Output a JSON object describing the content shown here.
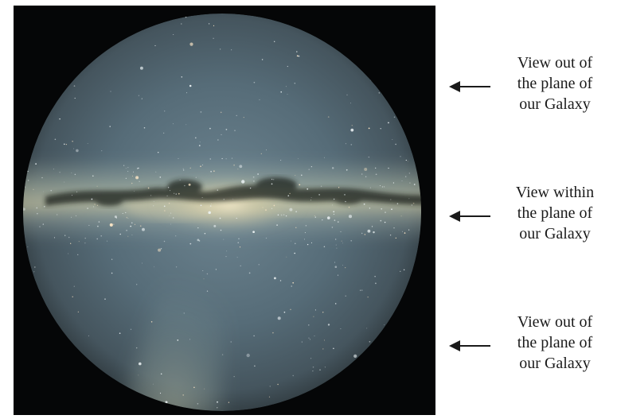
{
  "figure": {
    "background_color": "#050607",
    "sky_colors": {
      "sky_edge": "#3c4a52",
      "sky_mid": "#5d7480",
      "band_core": "#f3e7c4",
      "band_glow": "#c9c9a6",
      "dust_lane": "#1e211d",
      "zodiacal_glow": "#9fb4ad"
    },
    "annotations": [
      {
        "lines": [
          "View out of",
          "the plane of",
          "our Galaxy"
        ],
        "arrow_icon": "left-arrow-icon"
      },
      {
        "lines": [
          "View within",
          "the plane of",
          "our Galaxy"
        ],
        "arrow_icon": "left-arrow-icon"
      },
      {
        "lines": [
          "View out of",
          "the plane of",
          "our Galaxy"
        ],
        "arrow_icon": "left-arrow-icon"
      }
    ]
  }
}
